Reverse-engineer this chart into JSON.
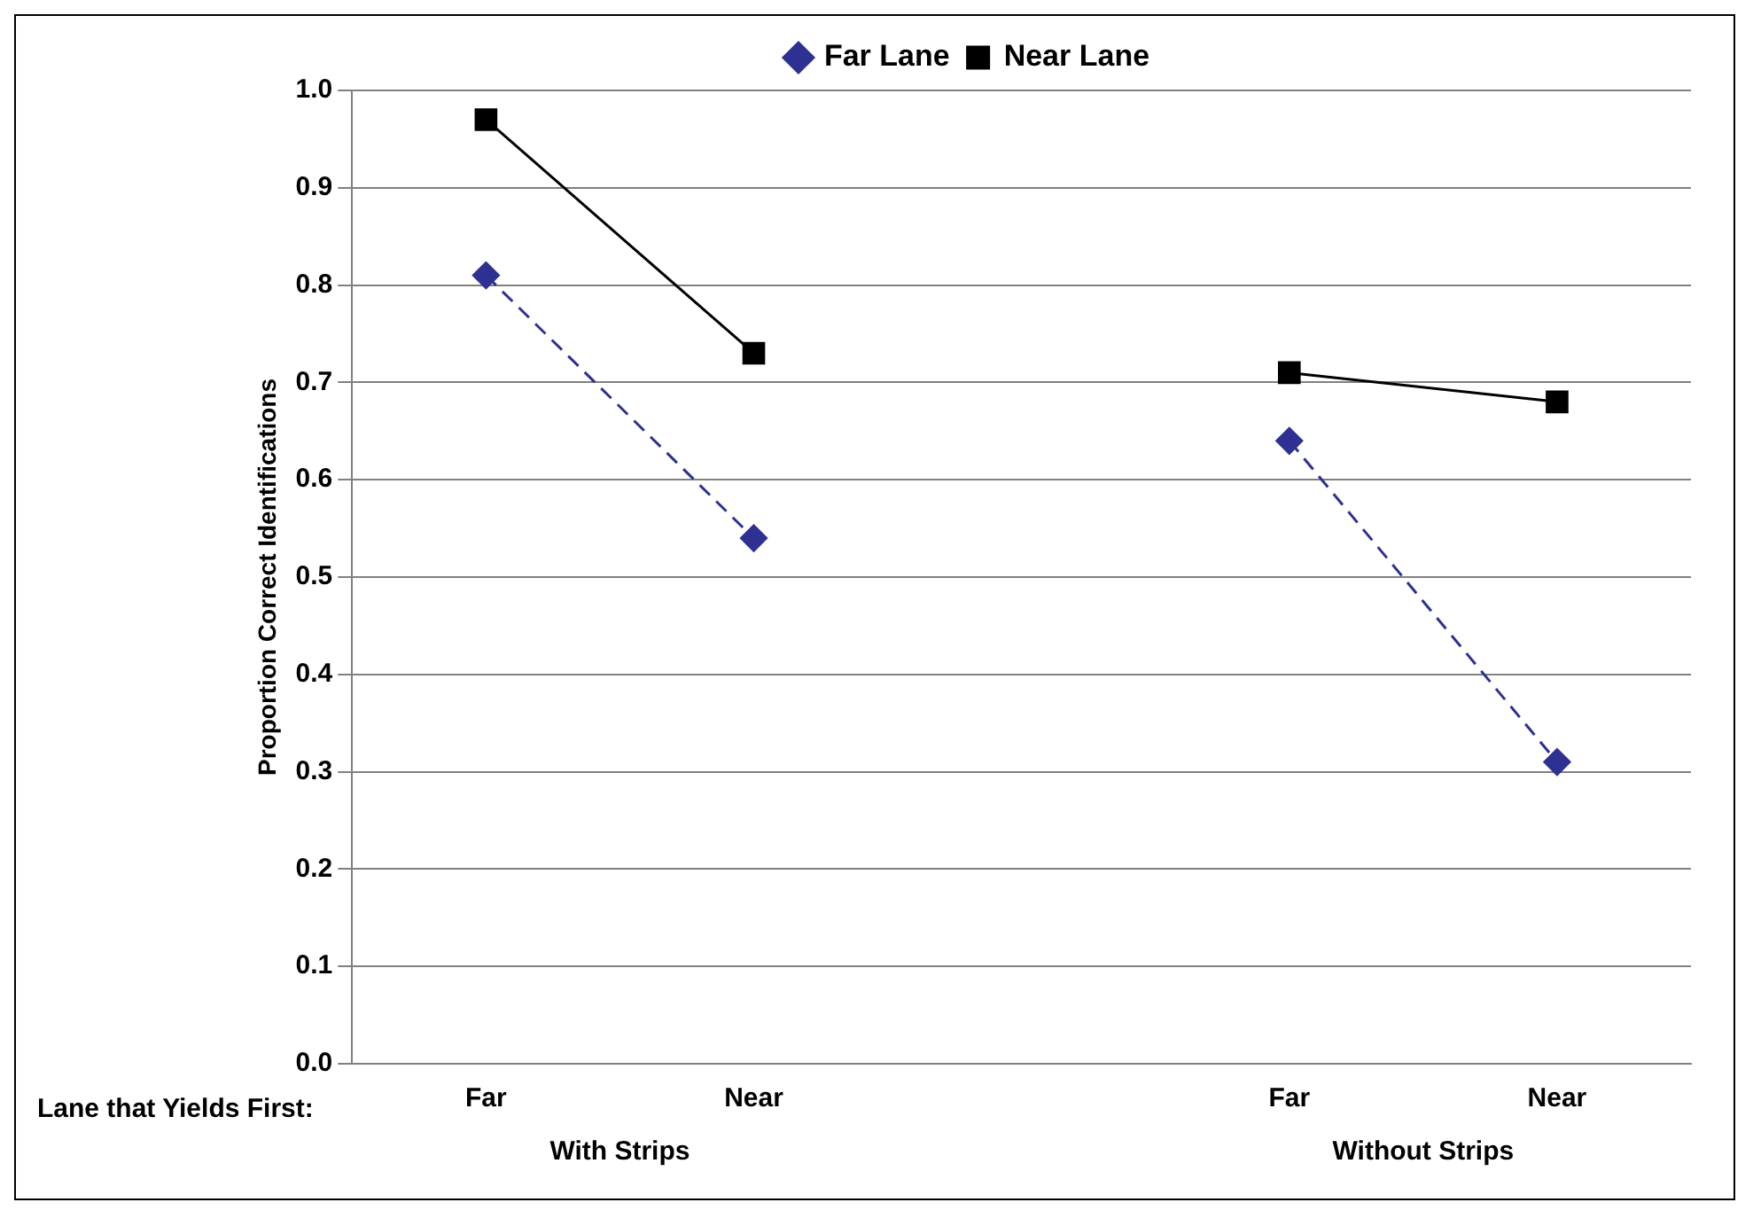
{
  "chart_data": {
    "type": "line",
    "xlabel": "Lane that Yields First:",
    "ylabel": "Proportion Correct Identifications",
    "categories": [
      "Far",
      "Near",
      null,
      "Far",
      "Near"
    ],
    "series": [
      {
        "name": "Far Lane",
        "color": "#2e3192",
        "marker": "diamond",
        "line_style": "dashed",
        "values": [
          0.81,
          0.54,
          null,
          0.64,
          0.31
        ]
      },
      {
        "name": "Near Lane",
        "color": "#000000",
        "marker": "square",
        "line_style": "solid",
        "values": [
          0.97,
          0.73,
          null,
          0.71,
          0.68
        ]
      }
    ],
    "ylim": [
      0,
      1
    ],
    "yticks": [
      {
        "value": 0,
        "label": "0.0"
      },
      {
        "value": 0.1,
        "label": "0.1"
      },
      {
        "value": 0.2,
        "label": "0.2"
      },
      {
        "value": 0.3,
        "label": "0.3"
      },
      {
        "value": 0.4,
        "label": "0.4"
      },
      {
        "value": 0.5,
        "label": "0.5"
      },
      {
        "value": 0.6,
        "label": "0.6"
      },
      {
        "value": 0.7,
        "label": "0.7"
      },
      {
        "value": 0.8,
        "label": "0.8"
      },
      {
        "value": 0.9,
        "label": "0.9"
      },
      {
        "value": 1,
        "label": "1.0"
      }
    ],
    "grid": "y",
    "legend": "top",
    "annotations": [
      "With Strips",
      "Without Strips"
    ]
  }
}
